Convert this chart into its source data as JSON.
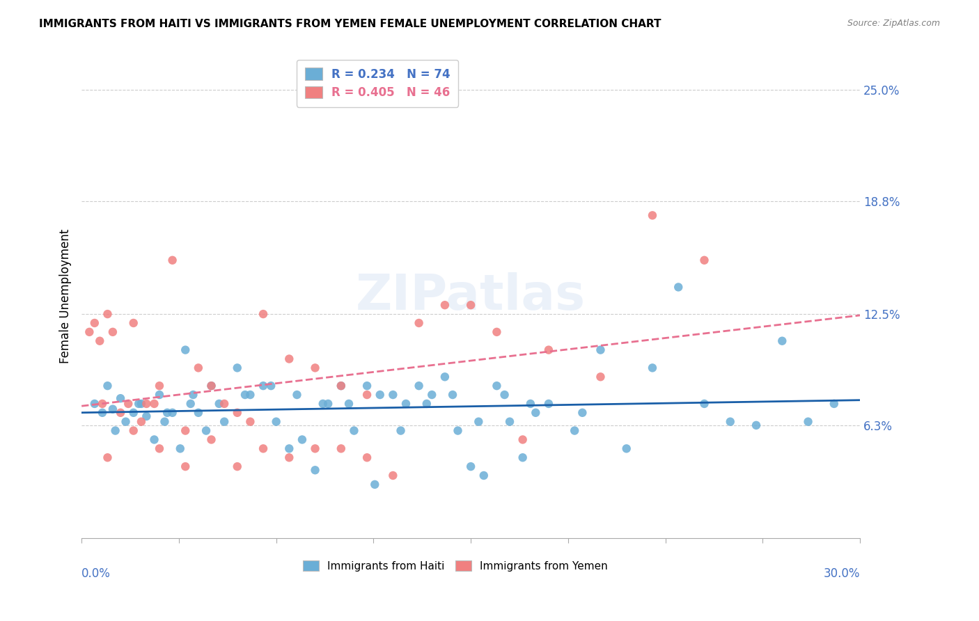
{
  "title": "IMMIGRANTS FROM HAITI VS IMMIGRANTS FROM YEMEN FEMALE UNEMPLOYMENT CORRELATION CHART",
  "source": "Source: ZipAtlas.com",
  "ylabel": "Female Unemployment",
  "ytick_labels": [
    "6.3%",
    "12.5%",
    "18.8%",
    "25.0%"
  ],
  "ytick_values": [
    6.3,
    12.5,
    18.8,
    25.0
  ],
  "xmin": 0.0,
  "xmax": 30.0,
  "ymin": 0.0,
  "ymax": 27.0,
  "haiti_color": "#6baed6",
  "yemen_color": "#f08080",
  "haiti_line_color": "#1a5fa8",
  "yemen_line_color": "#e87090",
  "haiti_scatter_x": [
    0.5,
    0.8,
    1.0,
    1.2,
    1.5,
    1.7,
    2.0,
    2.2,
    2.5,
    2.8,
    3.0,
    3.2,
    3.5,
    3.8,
    4.0,
    4.2,
    4.5,
    4.8,
    5.0,
    5.5,
    6.0,
    6.5,
    7.0,
    7.5,
    8.0,
    8.5,
    9.0,
    9.5,
    10.0,
    10.5,
    11.0,
    11.5,
    12.0,
    12.5,
    13.0,
    13.5,
    14.0,
    14.5,
    15.0,
    15.5,
    16.0,
    16.5,
    17.0,
    17.5,
    18.0,
    19.0,
    20.0,
    21.0,
    22.0,
    23.0,
    24.0,
    25.0,
    26.0,
    27.0,
    28.0,
    29.0,
    1.3,
    2.3,
    3.3,
    4.3,
    5.3,
    6.3,
    7.3,
    8.3,
    9.3,
    10.3,
    11.3,
    12.3,
    13.3,
    14.3,
    15.3,
    16.3,
    17.3,
    19.3
  ],
  "haiti_scatter_y": [
    7.5,
    7.0,
    8.5,
    7.2,
    7.8,
    6.5,
    7.0,
    7.5,
    6.8,
    5.5,
    8.0,
    6.5,
    7.0,
    5.0,
    10.5,
    7.5,
    7.0,
    6.0,
    8.5,
    6.5,
    9.5,
    8.0,
    8.5,
    6.5,
    5.0,
    5.5,
    3.8,
    7.5,
    8.5,
    6.0,
    8.5,
    8.0,
    8.0,
    7.5,
    8.5,
    8.0,
    9.0,
    6.0,
    4.0,
    3.5,
    8.5,
    6.5,
    4.5,
    7.0,
    7.5,
    6.0,
    10.5,
    5.0,
    9.5,
    14.0,
    7.5,
    6.5,
    6.3,
    11.0,
    6.5,
    7.5,
    6.0,
    7.5,
    7.0,
    8.0,
    7.5,
    8.0,
    8.5,
    8.0,
    7.5,
    7.5,
    3.0,
    6.0,
    7.5,
    8.0,
    6.5,
    8.0,
    7.5,
    7.0
  ],
  "yemen_scatter_x": [
    0.3,
    0.5,
    0.7,
    0.8,
    1.0,
    1.2,
    1.5,
    1.8,
    2.0,
    2.3,
    2.5,
    2.8,
    3.0,
    3.5,
    4.0,
    4.5,
    5.0,
    5.5,
    6.0,
    6.5,
    7.0,
    8.0,
    9.0,
    10.0,
    11.0,
    12.0,
    13.0,
    14.0,
    15.0,
    16.0,
    17.0,
    18.0,
    20.0,
    22.0,
    24.0,
    1.0,
    2.0,
    3.0,
    4.0,
    5.0,
    6.0,
    7.0,
    8.0,
    9.0,
    10.0,
    11.0
  ],
  "yemen_scatter_y": [
    11.5,
    12.0,
    11.0,
    7.5,
    12.5,
    11.5,
    7.0,
    7.5,
    12.0,
    6.5,
    7.5,
    7.5,
    8.5,
    15.5,
    6.0,
    9.5,
    8.5,
    7.5,
    7.0,
    6.5,
    12.5,
    10.0,
    9.5,
    8.5,
    8.0,
    3.5,
    12.0,
    13.0,
    13.0,
    11.5,
    5.5,
    10.5,
    9.0,
    18.0,
    15.5,
    4.5,
    6.0,
    5.0,
    4.0,
    5.5,
    4.0,
    5.0,
    4.5,
    5.0,
    5.0,
    4.5
  ],
  "haiti_R": 0.234,
  "haiti_N": 74,
  "yemen_R": 0.405,
  "yemen_N": 46
}
